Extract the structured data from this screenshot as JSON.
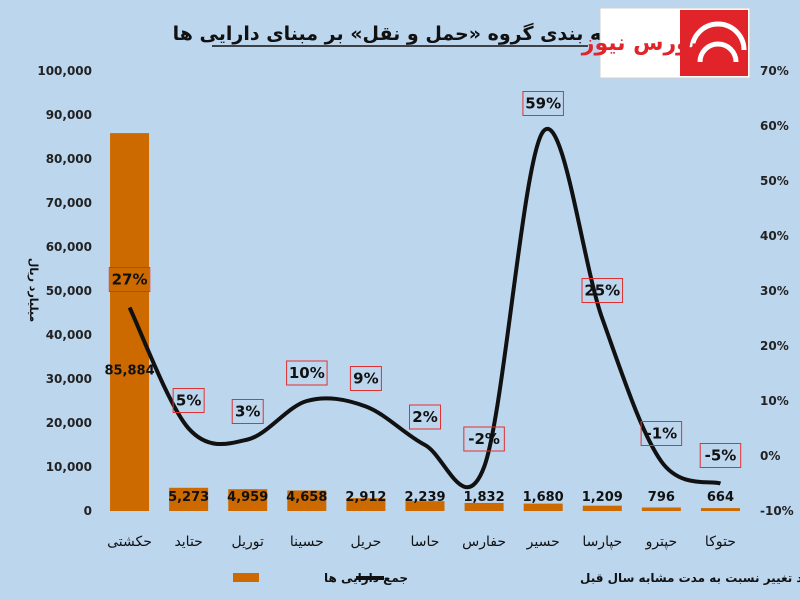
{
  "chart_data": {
    "type": "bar",
    "title": "رتبه بندی گروه «حمل و نقل» بر مبنای دارایی ها",
    "ylabel": "میلیارد ریال",
    "ylim": [
      0,
      100000
    ],
    "y_ticks": [
      "0",
      "10,000",
      "20,000",
      "30,000",
      "40,000",
      "50,000",
      "60,000",
      "70,000",
      "80,000",
      "90,000",
      "100,000"
    ],
    "y2lim": [
      -10,
      70
    ],
    "y2_ticks": [
      "-10%",
      "0%",
      "10%",
      "20%",
      "30%",
      "40%",
      "50%",
      "60%",
      "70%"
    ],
    "categories": [
      "حکشتی",
      "حتاید",
      "توریل",
      "حسینا",
      "حریل",
      "حاسا",
      "حفارس",
      "حسیر",
      "حپارسا",
      "حپترو",
      "حتوکا"
    ],
    "series": [
      {
        "name": "جمع دارایی ها",
        "type": "bar",
        "color": "#cc6a00",
        "values": [
          85884,
          5273,
          4959,
          4658,
          2912,
          2239,
          1832,
          1680,
          1209,
          796,
          664
        ],
        "labels": [
          "85,884",
          "5,273",
          "4,959",
          "4,658",
          "2,912",
          "2,239",
          "1,832",
          "1,680",
          "1,209",
          "796",
          "664"
        ]
      },
      {
        "name": "درصد تغییر نسبت به مدت مشابه سال قبل",
        "type": "line",
        "axis": "secondary",
        "color": "#111111",
        "values": [
          27,
          5,
          3,
          10,
          9,
          2,
          -2,
          59,
          25,
          -1,
          -5
        ],
        "labels": [
          "27%",
          "5%",
          "3%",
          "10%",
          "9%",
          "2%",
          "-2%",
          "59%",
          "25%",
          "-1%",
          "-5%"
        ]
      }
    ],
    "legend": "bottom"
  },
  "logo": {
    "text": "بورس نیوز",
    "colors": [
      "#e0242a",
      "#ffffff"
    ]
  }
}
